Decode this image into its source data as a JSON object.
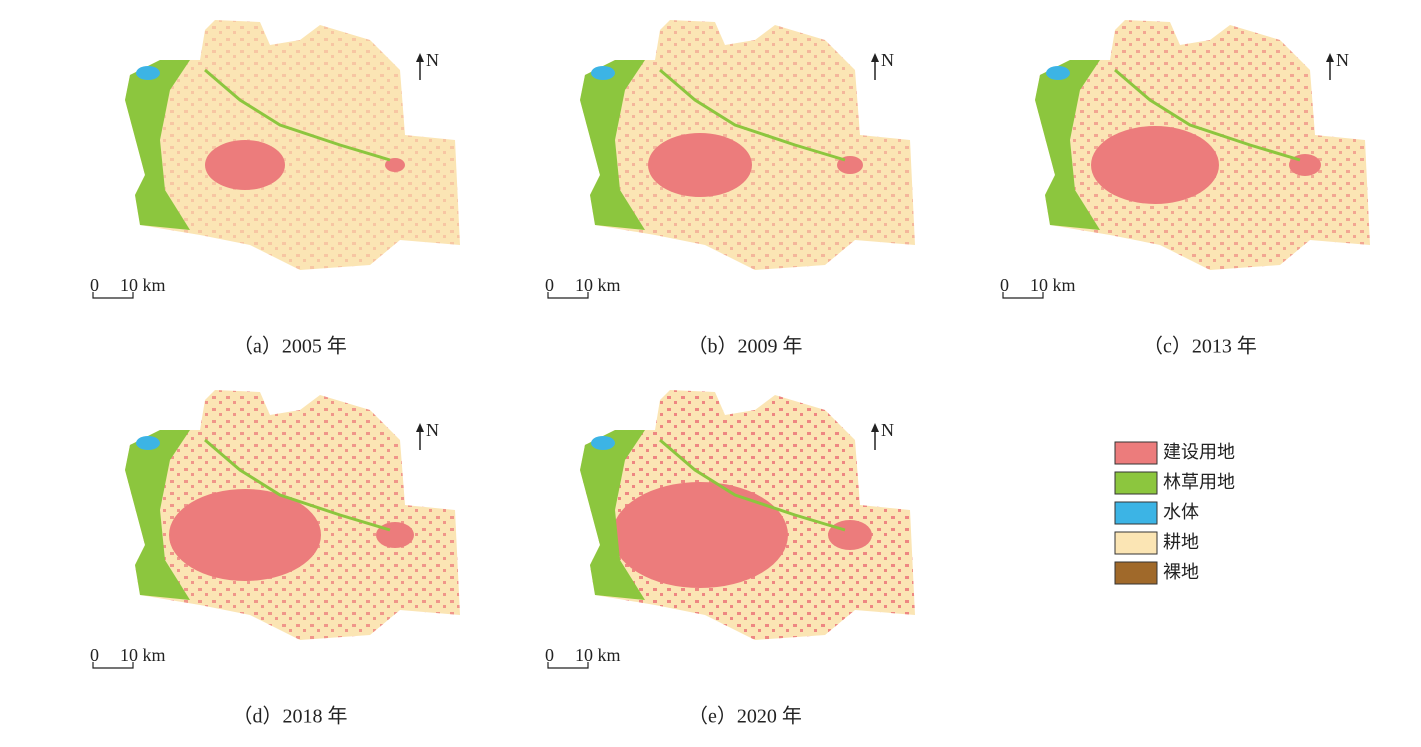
{
  "panels": [
    {
      "scale_start": "0",
      "scale_end": "10 km",
      "north": "N",
      "caption": "（a）2005 年"
    },
    {
      "scale_start": "0",
      "scale_end": "10 km",
      "north": "N",
      "caption": "（b）2009 年"
    },
    {
      "scale_start": "0",
      "scale_end": "10 km",
      "north": "N",
      "caption": "（c）2013 年"
    },
    {
      "scale_start": "0",
      "scale_end": "10 km",
      "north": "N",
      "caption": "（d）2018 年"
    },
    {
      "scale_start": "0",
      "scale_end": "10 km",
      "north": "N",
      "caption": "（e）2020 年"
    }
  ],
  "legend": [
    {
      "label": "建设用地",
      "color": "#ec7c7c"
    },
    {
      "label": "林草用地",
      "color": "#8cc63e"
    },
    {
      "label": "水体",
      "color": "#3cb4e5"
    },
    {
      "label": "耕地",
      "color": "#fbe5b4"
    },
    {
      "label": "裸地",
      "color": "#a0692a"
    }
  ]
}
